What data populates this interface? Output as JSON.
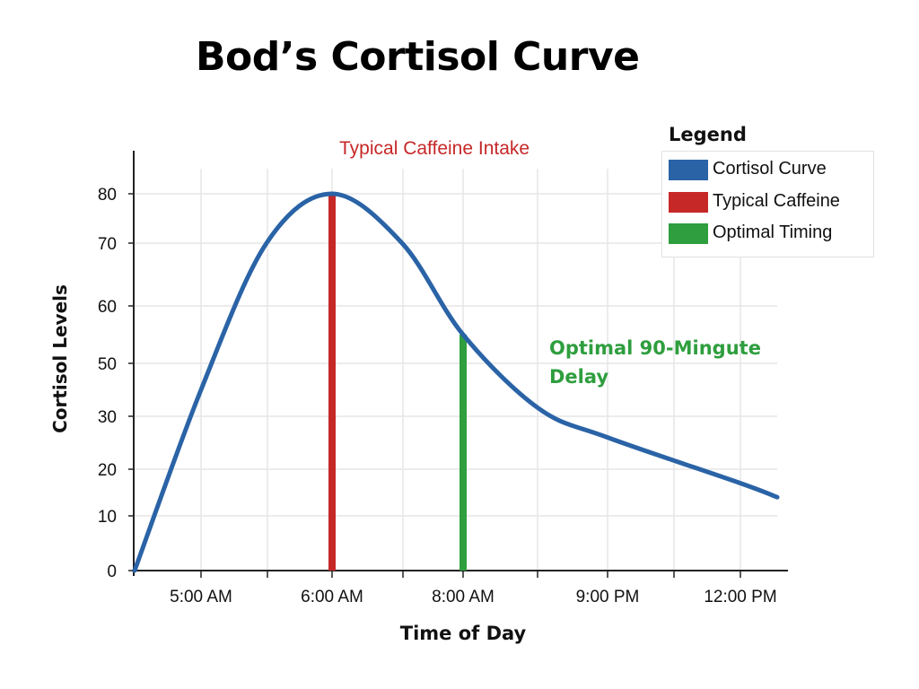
{
  "chart_data": {
    "type": "line",
    "title": "Bod’s Cortisol Curve",
    "xlabel": "Time of Day",
    "ylabel": "Cortisol Levels",
    "x_tick_labels": [
      "5:00 AM",
      "6:00 AM",
      "8:00 AM",
      "9:00 PM",
      "12:00 PM"
    ],
    "y_ticks": [
      0,
      10,
      20,
      30,
      50,
      60,
      70,
      80
    ],
    "grid": true,
    "legend": {
      "title": "Legend",
      "placement": "top-right",
      "items": [
        {
          "label": "Cortisol Curve",
          "color": "#2a63a6"
        },
        {
          "label": "Typical Caffeine",
          "color": "#c62828"
        },
        {
          "label": "Optimal Timing",
          "color": "#2e9e3e"
        }
      ]
    },
    "series": [
      {
        "name": "Cortisol Curve",
        "color": "#2a63a6",
        "points": [
          [
            "start",
            0
          ],
          [
            "5:00 AM",
            40
          ],
          [
            "between 5:00 AM and 6:00 AM",
            70
          ],
          [
            "6:00 AM",
            80
          ],
          [
            "between 6:00 AM and 8:00 AM",
            70
          ],
          [
            "8:00 AM",
            55
          ],
          [
            "between 8:00 AM and 9:00 PM",
            33
          ],
          [
            "9:00 PM",
            26
          ],
          [
            "12:00 PM",
            17
          ],
          [
            "end",
            14
          ]
        ]
      }
    ],
    "markers": [
      {
        "name": "Typical Caffeine",
        "at": "6:00 AM",
        "from": 0,
        "to": 80,
        "color": "#c62828"
      },
      {
        "name": "Optimal Timing",
        "at": "8:00 AM",
        "from": 0,
        "to": 55,
        "color": "#2e9e3e"
      }
    ],
    "annotations": [
      {
        "text": "Typical Caffeine Intake",
        "color": "#c62828"
      },
      {
        "text": "Optimal 90-Mingute Delay",
        "color": "#2e9e3e"
      }
    ]
  }
}
